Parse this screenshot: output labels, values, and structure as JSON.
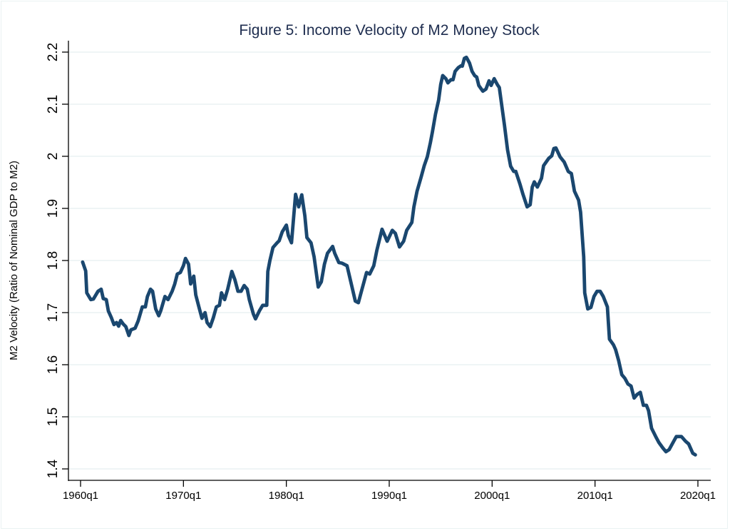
{
  "chart_data": {
    "type": "line",
    "title": "Figure 5: Income Velocity of M2 Money Stock",
    "xlabel": "",
    "ylabel": "M2 Velocity (Ratio of Nominal GDP to M2)",
    "xlim": [
      1960,
      2021.1
    ],
    "ylim": [
      1.377,
      2.2
    ],
    "grid": true,
    "x_ticks": [
      1960,
      1970,
      1980,
      1990,
      2000,
      2010,
      2020
    ],
    "x_tick_labels": [
      "1960q1",
      "1970q1",
      "1980q1",
      "1990q1",
      "2000q1",
      "2010q1",
      "2020q1"
    ],
    "y_ticks": [
      1.4,
      1.5,
      1.6,
      1.7,
      1.8,
      1.9,
      2.0,
      2.1,
      2.2
    ],
    "y_tick_labels": [
      "1.4",
      "1.5",
      "1.6",
      "1.7",
      "1.8",
      "1.9",
      "2",
      "2.1",
      "2.2"
    ],
    "line_color": "#1a476f",
    "grid_color": "#eaf2f3",
    "series": [
      {
        "name": "M2 Velocity",
        "x": [
          1960.2,
          1960.5,
          1960.6,
          1961.0,
          1961.25,
          1961.7,
          1962.0,
          1962.2,
          1962.5,
          1962.7,
          1963.0,
          1963.25,
          1963.5,
          1963.7,
          1963.9,
          1964.15,
          1964.4,
          1964.7,
          1964.9,
          1965.3,
          1965.6,
          1966.0,
          1966.3,
          1966.5,
          1966.8,
          1967.0,
          1967.3,
          1967.6,
          1967.8,
          1968.2,
          1968.5,
          1968.9,
          1969.15,
          1969.4,
          1969.7,
          1970.0,
          1970.2,
          1970.5,
          1970.7,
          1971.0,
          1971.2,
          1971.5,
          1971.8,
          1972.1,
          1972.3,
          1972.6,
          1972.9,
          1973.2,
          1973.5,
          1973.7,
          1974.0,
          1974.3,
          1974.7,
          1975.0,
          1975.3,
          1975.6,
          1975.9,
          1976.2,
          1976.4,
          1976.8,
          1977.0,
          1977.4,
          1977.7,
          1978.1,
          1978.2,
          1978.4,
          1978.7,
          1979.1,
          1979.3,
          1979.6,
          1980.0,
          1980.2,
          1980.5,
          1980.9,
          1981.2,
          1981.5,
          1981.8,
          1982.0,
          1982.4,
          1982.7,
          1983.1,
          1983.4,
          1983.7,
          1984.0,
          1984.5,
          1984.7,
          1985.1,
          1985.4,
          1985.9,
          1986.3,
          1986.7,
          1987.0,
          1987.3,
          1987.8,
          1988.1,
          1988.5,
          1988.8,
          1989.3,
          1989.8,
          1990.3,
          1990.6,
          1991.0,
          1991.4,
          1991.7,
          1992.2,
          1992.4,
          1992.7,
          1993.1,
          1993.4,
          1993.7,
          1994.0,
          1994.2,
          1994.5,
          1994.8,
          1995.0,
          1995.2,
          1995.5,
          1995.7,
          1996.0,
          1996.2,
          1996.4,
          1996.7,
          1997.0,
          1997.1,
          1997.3,
          1997.5,
          1997.8,
          1998.05,
          1998.3,
          1998.5,
          1998.7,
          1999.1,
          1999.4,
          1999.7,
          1999.9,
          2000.2,
          2000.5,
          2000.7,
          2001.0,
          2001.2,
          2001.5,
          2001.8,
          2002.1,
          2002.3,
          2002.7,
          2003.0,
          2003.4,
          2003.7,
          2003.9,
          2004.1,
          2004.4,
          2004.8,
          2005.0,
          2005.5,
          2005.8,
          2006.0,
          2006.2,
          2006.6,
          2007.0,
          2007.4,
          2007.7,
          2008.0,
          2008.4,
          2008.6,
          2008.9,
          2009.0,
          2009.3,
          2009.6,
          2009.9,
          2010.2,
          2010.5,
          2010.8,
          2011.2,
          2011.4,
          2011.8,
          2012.0,
          2012.3,
          2012.6,
          2012.9,
          2013.2,
          2013.5,
          2013.8,
          2014.1,
          2014.4,
          2014.7,
          2015.0,
          2015.2,
          2015.5,
          2015.9,
          2016.2,
          2016.6,
          2016.9,
          2017.2,
          2017.7,
          2017.9,
          2018.2,
          2018.4,
          2018.8,
          2019.1,
          2019.5,
          2019.75
        ],
        "values": [
          1.797,
          1.78,
          1.738,
          1.725,
          1.726,
          1.741,
          1.745,
          1.727,
          1.725,
          1.703,
          1.69,
          1.677,
          1.681,
          1.674,
          1.685,
          1.678,
          1.673,
          1.656,
          1.667,
          1.67,
          1.684,
          1.711,
          1.711,
          1.731,
          1.745,
          1.741,
          1.707,
          1.694,
          1.704,
          1.731,
          1.725,
          1.741,
          1.755,
          1.774,
          1.777,
          1.79,
          1.804,
          1.793,
          1.755,
          1.77,
          1.734,
          1.711,
          1.689,
          1.7,
          1.681,
          1.673,
          1.69,
          1.711,
          1.714,
          1.738,
          1.725,
          1.745,
          1.779,
          1.763,
          1.741,
          1.741,
          1.752,
          1.745,
          1.725,
          1.697,
          1.688,
          1.704,
          1.714,
          1.714,
          1.779,
          1.8,
          1.825,
          1.834,
          1.838,
          1.855,
          1.868,
          1.848,
          1.834,
          1.927,
          1.903,
          1.926,
          1.886,
          1.844,
          1.834,
          1.807,
          1.749,
          1.759,
          1.793,
          1.814,
          1.827,
          1.814,
          1.796,
          1.795,
          1.79,
          1.756,
          1.722,
          1.719,
          1.741,
          1.777,
          1.774,
          1.79,
          1.82,
          1.86,
          1.837,
          1.858,
          1.852,
          1.826,
          1.837,
          1.858,
          1.873,
          1.903,
          1.933,
          1.96,
          1.982,
          1.999,
          2.026,
          2.047,
          2.081,
          2.108,
          2.138,
          2.155,
          2.149,
          2.141,
          2.147,
          2.147,
          2.163,
          2.17,
          2.174,
          2.173,
          2.188,
          2.19,
          2.179,
          2.163,
          2.155,
          2.152,
          2.136,
          2.125,
          2.129,
          2.145,
          2.136,
          2.149,
          2.138,
          2.132,
          2.088,
          2.06,
          2.012,
          1.981,
          1.971,
          1.971,
          1.947,
          1.927,
          1.903,
          1.907,
          1.941,
          1.951,
          1.941,
          1.958,
          1.982,
          1.996,
          2.001,
          2.015,
          2.016,
          1.999,
          1.989,
          1.971,
          1.967,
          1.933,
          1.916,
          1.893,
          1.807,
          1.738,
          1.707,
          1.71,
          1.731,
          1.741,
          1.741,
          1.731,
          1.711,
          1.649,
          1.638,
          1.629,
          1.608,
          1.581,
          1.574,
          1.563,
          1.559,
          1.536,
          1.543,
          1.547,
          1.522,
          1.522,
          1.512,
          1.478,
          1.462,
          1.451,
          1.44,
          1.433,
          1.437,
          1.455,
          1.462,
          1.462,
          1.462,
          1.453,
          1.448,
          1.43,
          1.427
        ]
      }
    ]
  }
}
